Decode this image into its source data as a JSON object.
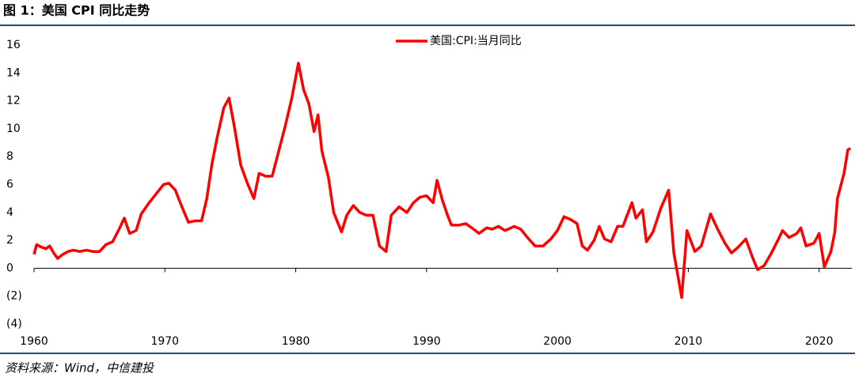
{
  "chart_data": {
    "type": "line",
    "title": "图 1：美国 CPI 同比走势",
    "source": "资料来源：Wind，中信建投",
    "x": [
      1960.0,
      1960.2,
      1960.6,
      1960.9,
      1961.2,
      1961.5,
      1961.8,
      1962.2,
      1962.6,
      1963.0,
      1963.5,
      1964.0,
      1964.5,
      1965.0,
      1965.5,
      1966.0,
      1966.5,
      1966.9,
      1967.3,
      1967.8,
      1968.2,
      1968.8,
      1969.3,
      1969.9,
      1970.3,
      1970.8,
      1971.3,
      1971.8,
      1972.3,
      1972.8,
      1973.2,
      1973.6,
      1974.0,
      1974.5,
      1974.9,
      1975.3,
      1975.8,
      1976.3,
      1976.8,
      1977.2,
      1977.7,
      1978.2,
      1978.7,
      1979.2,
      1979.7,
      1980.2,
      1980.6,
      1981.0,
      1981.4,
      1981.7,
      1982.0,
      1982.5,
      1982.9,
      1983.5,
      1983.9,
      1984.4,
      1984.9,
      1985.4,
      1985.9,
      1986.4,
      1986.9,
      1987.3,
      1987.9,
      1988.5,
      1989.0,
      1989.5,
      1990.0,
      1990.5,
      1990.8,
      1991.2,
      1991.6,
      1991.9,
      1992.5,
      1993.0,
      1993.6,
      1994.0,
      1994.6,
      1995.0,
      1995.5,
      1996.0,
      1996.7,
      1997.2,
      1997.8,
      1998.3,
      1998.9,
      1999.5,
      2000.0,
      2000.5,
      2001.0,
      2001.5,
      2001.9,
      2002.3,
      2002.8,
      2003.2,
      2003.6,
      2004.1,
      2004.6,
      2005.0,
      2005.7,
      2006.0,
      2006.5,
      2006.8,
      2007.3,
      2007.9,
      2008.5,
      2008.9,
      2009.5,
      2009.9,
      2010.5,
      2011.0,
      2011.7,
      2012.3,
      2012.8,
      2013.3,
      2013.8,
      2014.4,
      2014.9,
      2015.3,
      2015.8,
      2016.3,
      2016.9,
      2017.2,
      2017.7,
      2018.3,
      2018.6,
      2019.0,
      2019.6,
      2020.0,
      2020.4,
      2020.9,
      2021.2,
      2021.4,
      2021.9,
      2022.2,
      2022.4
    ],
    "series": [
      {
        "name": "美国:CPI:当月同比",
        "color": "#ff0000",
        "values": [
          1.0,
          1.7,
          1.5,
          1.4,
          1.6,
          1.1,
          0.7,
          1.0,
          1.2,
          1.3,
          1.2,
          1.3,
          1.2,
          1.2,
          1.7,
          1.9,
          2.8,
          3.6,
          2.5,
          2.7,
          3.9,
          4.7,
          5.3,
          6.0,
          6.1,
          5.6,
          4.4,
          3.3,
          3.4,
          3.4,
          5.0,
          7.5,
          9.4,
          11.5,
          12.2,
          10.2,
          7.4,
          6.1,
          5.0,
          6.8,
          6.6,
          6.6,
          8.4,
          10.2,
          12.2,
          14.7,
          12.8,
          11.8,
          9.8,
          11.0,
          8.4,
          6.5,
          4.0,
          2.6,
          3.8,
          4.5,
          4.0,
          3.8,
          3.8,
          1.6,
          1.2,
          3.8,
          4.4,
          4.0,
          4.7,
          5.1,
          5.2,
          4.7,
          6.3,
          4.9,
          3.8,
          3.1,
          3.1,
          3.2,
          2.8,
          2.5,
          2.9,
          2.8,
          3.0,
          2.7,
          3.0,
          2.8,
          2.1,
          1.6,
          1.6,
          2.1,
          2.7,
          3.7,
          3.5,
          3.2,
          1.6,
          1.3,
          2.0,
          3.0,
          2.1,
          1.9,
          3.0,
          3.0,
          4.7,
          3.6,
          4.2,
          1.9,
          2.6,
          4.3,
          5.6,
          1.1,
          -2.1,
          2.7,
          1.2,
          1.6,
          3.9,
          2.7,
          1.8,
          1.1,
          1.5,
          2.1,
          0.8,
          -0.1,
          0.2,
          1.0,
          2.1,
          2.7,
          2.2,
          2.5,
          2.9,
          1.6,
          1.8,
          2.5,
          0.1,
          1.2,
          2.6,
          5.0,
          6.8,
          8.5,
          8.6
        ]
      }
    ],
    "xlim": [
      1960,
      2022.5
    ],
    "xticks": [
      1960,
      1970,
      1980,
      1990,
      2000,
      2010,
      2020
    ],
    "ylim": [
      -4,
      16
    ],
    "yticks": [
      {
        "value": -4,
        "label": "(4)"
      },
      {
        "value": -2,
        "label": "(2)"
      },
      0,
      2,
      4,
      6,
      8,
      10,
      12,
      14,
      16
    ],
    "negative_tick_color": "#c00000",
    "legend": "top"
  }
}
